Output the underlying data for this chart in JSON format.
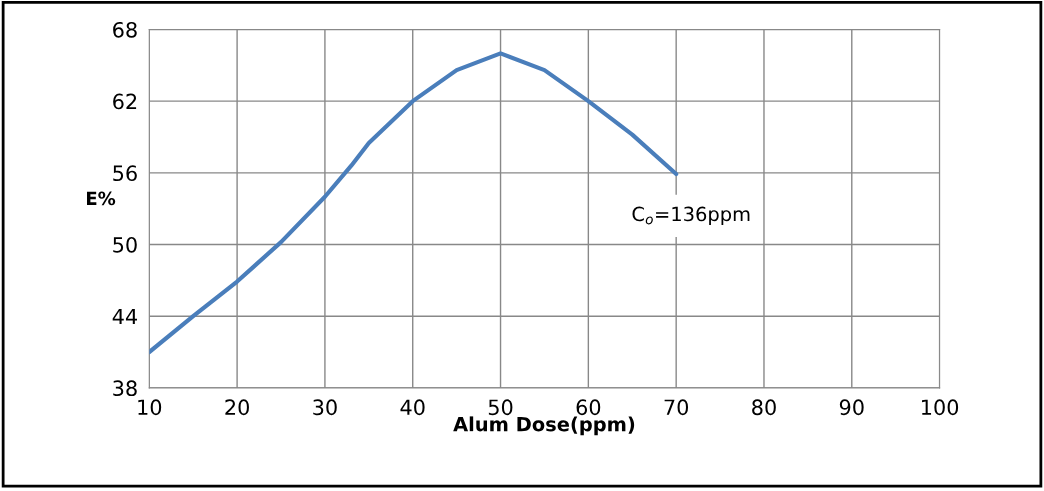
{
  "chart_data": {
    "type": "line",
    "xlabel": "Alum Dose(ppm)",
    "ylabel": "E%",
    "x": [
      10,
      15,
      20,
      25,
      30,
      33,
      35,
      40,
      45,
      50,
      55,
      60,
      65,
      70
    ],
    "series": [
      {
        "color": "#4a7ebb",
        "values": [
          41.0,
          44.0,
          46.9,
          50.2,
          54.0,
          56.6,
          58.5,
          62.0,
          64.6,
          66.0,
          64.6,
          62.0,
          59.2,
          55.9
        ]
      }
    ],
    "xlim": [
      10,
      100
    ],
    "xticks": [
      10,
      20,
      30,
      40,
      50,
      60,
      70,
      80,
      90,
      100
    ],
    "ylim": [
      38,
      68
    ],
    "yticks": [
      38,
      44,
      50,
      56,
      62,
      68
    ],
    "grid": true,
    "marker": "none",
    "line_style": "solid",
    "annotations": [
      "C$_{o}$=136ppm"
    ]
  }
}
